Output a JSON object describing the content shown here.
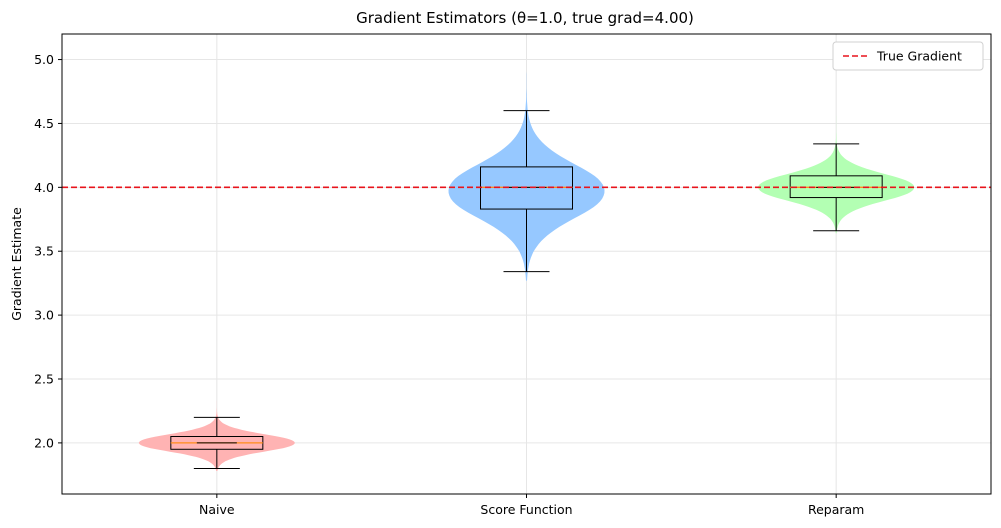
{
  "chart_data": {
    "type": "violin",
    "title": "Gradient Estimators (θ=1.0, true grad=4.00)",
    "xlabel": "",
    "ylabel": "Gradient Estimate",
    "ylim": [
      1.6,
      5.2
    ],
    "yticks": [
      "2.0",
      "2.5",
      "3.0",
      "3.5",
      "4.0",
      "4.5",
      "5.0"
    ],
    "ytick_values": [
      2.0,
      2.5,
      3.0,
      3.5,
      4.0,
      4.5,
      5.0
    ],
    "grid": true,
    "legend": {
      "position": "top-right",
      "label": "True Gradient"
    },
    "reference_line": {
      "value": 4.0,
      "color": "#e8141c",
      "style": "dashed"
    },
    "categories": [
      "Naive",
      "Score Function",
      "Reparam"
    ],
    "series": [
      {
        "color": "#ffb3b3",
        "median": 2.0,
        "q1": 1.95,
        "q3": 2.05,
        "whisker_low": 1.8,
        "whisker_high": 2.2,
        "min": 1.78,
        "max": 2.33,
        "violin_center": 2.0,
        "violin_spread": 0.07
      },
      {
        "color": "#96c8ff",
        "median": 4.0,
        "q1": 3.83,
        "q3": 4.16,
        "whisker_low": 3.34,
        "whisker_high": 4.6,
        "min": 3.27,
        "max": 5.04,
        "violin_center": 3.97,
        "violin_spread": 0.22
      },
      {
        "color": "#b3ffb3",
        "median": 4.0,
        "q1": 3.92,
        "q3": 4.09,
        "whisker_low": 3.66,
        "whisker_high": 4.34,
        "min": 3.64,
        "max": 4.56,
        "violin_center": 4.0,
        "violin_spread": 0.11
      }
    ]
  }
}
